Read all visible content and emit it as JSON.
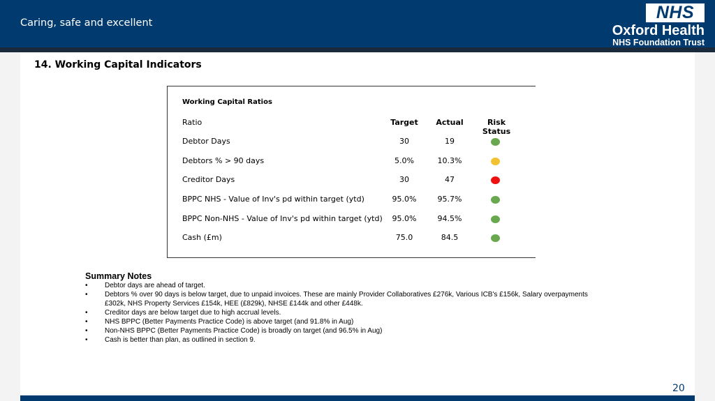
{
  "header": {
    "tagline": "Caring, safe and excellent",
    "logo_text": "NHS",
    "org_name": "Oxford Health",
    "org_sub": "NHS Foundation Trust"
  },
  "section_title": "14. Working Capital Indicators",
  "table": {
    "caption": "Working Capital Ratios",
    "headers": {
      "ratio": "Ratio",
      "target": "Target",
      "actual": "Actual",
      "risk": "Risk Status"
    },
    "rows": [
      {
        "ratio": "Debtor Days",
        "target": "30",
        "actual": "19",
        "status": "green",
        "color": "#6aa84f"
      },
      {
        "ratio": "Debtors % > 90 days",
        "target": "5.0%",
        "actual": "10.3%",
        "status": "amber",
        "color": "#f1c232"
      },
      {
        "ratio": "Creditor Days",
        "target": "30",
        "actual": "47",
        "status": "red",
        "color": "#ee1111"
      },
      {
        "ratio": "BPPC NHS - Value of Inv's pd within target (ytd)",
        "target": "95.0%",
        "actual": "95.7%",
        "status": "green",
        "color": "#6aa84f"
      },
      {
        "ratio": "BPPC Non-NHS - Value of Inv's pd within target (ytd)",
        "target": "95.0%",
        "actual": "94.5%",
        "status": "green",
        "color": "#6aa84f"
      },
      {
        "ratio": "Cash (£m)",
        "target": "75.0",
        "actual": "84.5",
        "status": "green",
        "color": "#6aa84f"
      }
    ]
  },
  "notes": {
    "title": "Summary Notes",
    "bullet": "•",
    "items": [
      "Debtor days are ahead of target.",
      "Debtors % over 90 days is below target, due to unpaid invoices. These are mainly Provider Collaboratives £276k, Various ICB's £156k, Salary overpayments £302k, NHS Property Services £154k, HEE (£829k), NHSE £144k and other £448k.",
      "Creditor days are below target due to high accrual levels.",
      "NHS BPPC (Better Payments Practice Code) is above target (and 91.8% in Aug)",
      "Non-NHS BPPC (Better Payments Practice Code) is broadly on target (and 96.5% in Aug)",
      "Cash is better than plan, as outlined in section 9."
    ]
  },
  "page_number": "20",
  "colors": {
    "brand_blue": "#003a6e",
    "status_green": "#6aa84f",
    "status_amber": "#f1c232",
    "status_red": "#ee1111"
  }
}
